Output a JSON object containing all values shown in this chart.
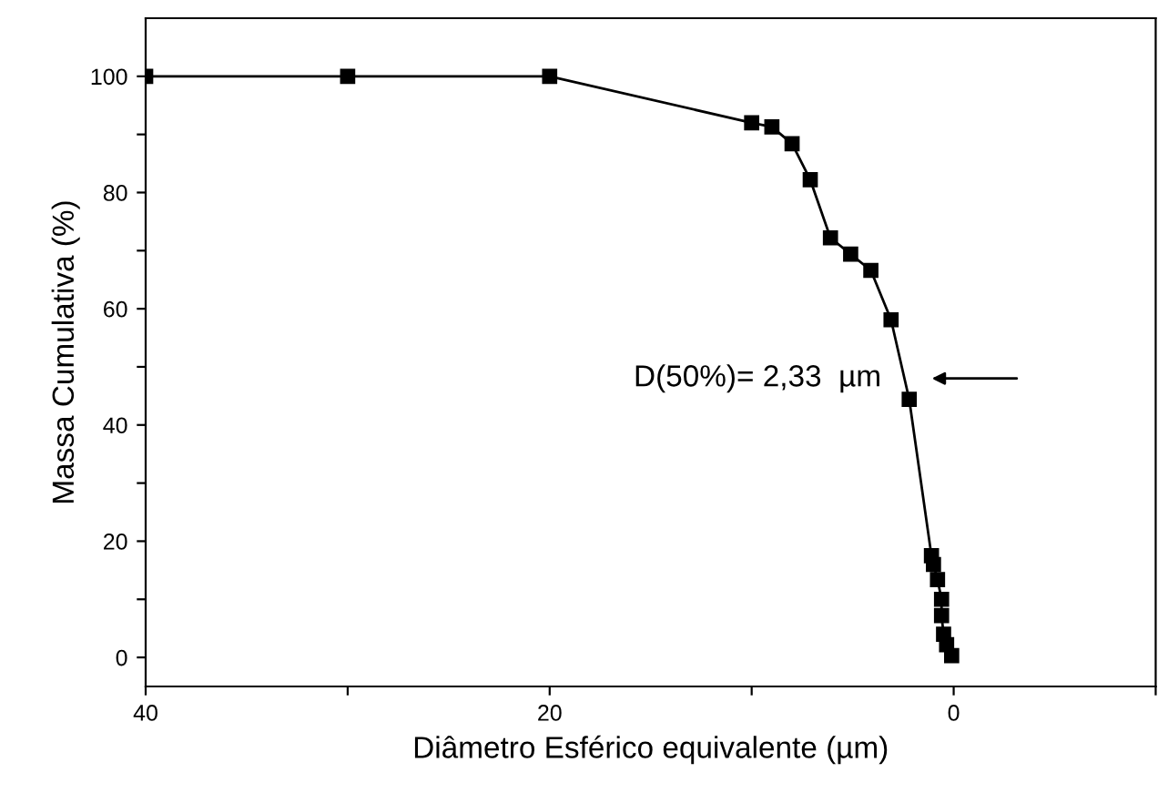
{
  "chart_data": {
    "type": "line",
    "xlabel": "Diâmetro Esférico equivalente (µm)",
    "ylabel": "Massa Cumulativa (%)",
    "x": [
      40,
      30,
      20,
      10,
      9,
      8,
      7.1,
      6.1,
      5.1,
      4.1,
      3.1,
      2.2,
      1.1,
      1.0,
      0.8,
      0.6,
      0.6,
      0.5,
      0.35,
      0.1
    ],
    "series": [
      {
        "color": "#000000",
        "values": [
          100,
          100,
          100,
          92,
          91.3,
          88.4,
          82.2,
          72.2,
          69.4,
          66.6,
          58.1,
          44.4,
          17.5,
          16,
          13.4,
          10,
          7.2,
          4,
          2.2,
          0.3
        ]
      }
    ],
    "marker": "square",
    "line_style": "solid",
    "grid": false,
    "legend": false,
    "xlim": [
      40,
      -10
    ],
    "ylim": [
      -5,
      110
    ],
    "xticks": [
      40,
      {
        "value": 30,
        "label": null
      },
      20,
      {
        "value": 10,
        "label": null
      },
      0,
      {
        "value": -10,
        "label": null
      }
    ],
    "yticks": [
      0,
      {
        "value": 10,
        "label": null
      },
      20,
      {
        "value": 30,
        "label": null
      },
      40,
      {
        "value": 50,
        "label": null
      },
      60,
      {
        "value": 70,
        "label": null
      },
      80,
      {
        "value": 90,
        "label": null
      },
      100
    ],
    "annotations": [
      {
        "text": "D(50%)= 2,33  µm",
        "x": 2.33,
        "y": 48
      }
    ]
  }
}
